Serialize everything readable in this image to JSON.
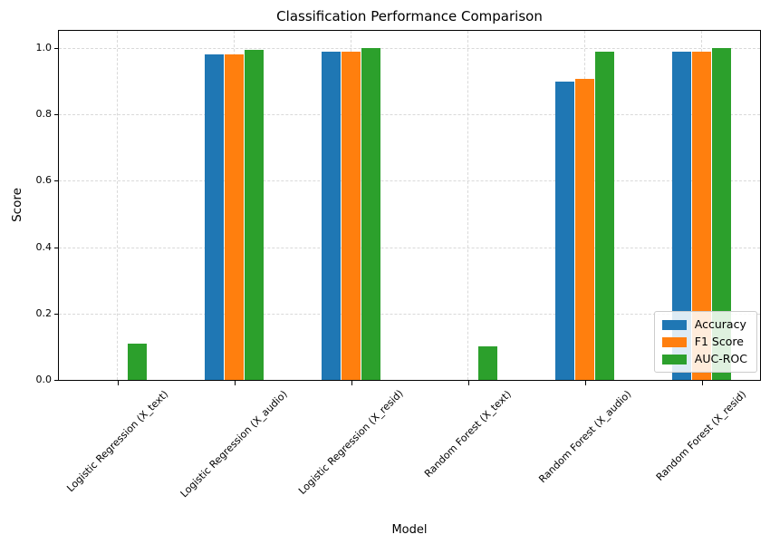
{
  "chart_data": {
    "type": "bar",
    "title": "Classification Performance Comparison",
    "xlabel": "Model",
    "ylabel": "Score",
    "categories": [
      "Logistic Regression (X_text)",
      "Logistic Regression (X_audio)",
      "Logistic Regression (X_resid)",
      "Random Forest (X_text)",
      "Random Forest (X_audio)",
      "Random Forest (X_resid)"
    ],
    "series": [
      {
        "name": "Accuracy",
        "color": "#1f77b4",
        "values": [
          0.0,
          0.98,
          0.99,
          0.0,
          0.9,
          0.99
        ]
      },
      {
        "name": "F1 Score",
        "color": "#ff7f0e",
        "values": [
          0.0,
          0.98,
          0.99,
          0.0,
          0.908,
          0.99
        ]
      },
      {
        "name": "AUC-ROC",
        "color": "#2ca02c",
        "values": [
          0.11,
          0.995,
          1.0,
          0.1,
          0.99,
          1.0
        ]
      }
    ],
    "ylim": [
      0.0,
      1.05
    ],
    "yticks": [
      0.0,
      0.2,
      0.4,
      0.6,
      0.8,
      1.0
    ],
    "ytick_labels": [
      "0.0",
      "0.2",
      "0.4",
      "0.6",
      "0.8",
      "1.0"
    ],
    "grid": true,
    "grid_style": "dashed",
    "grid_color": "#d9d9d9",
    "legend_position": "lower right",
    "background_color": "#ffffff",
    "axis_color": "#000000"
  }
}
